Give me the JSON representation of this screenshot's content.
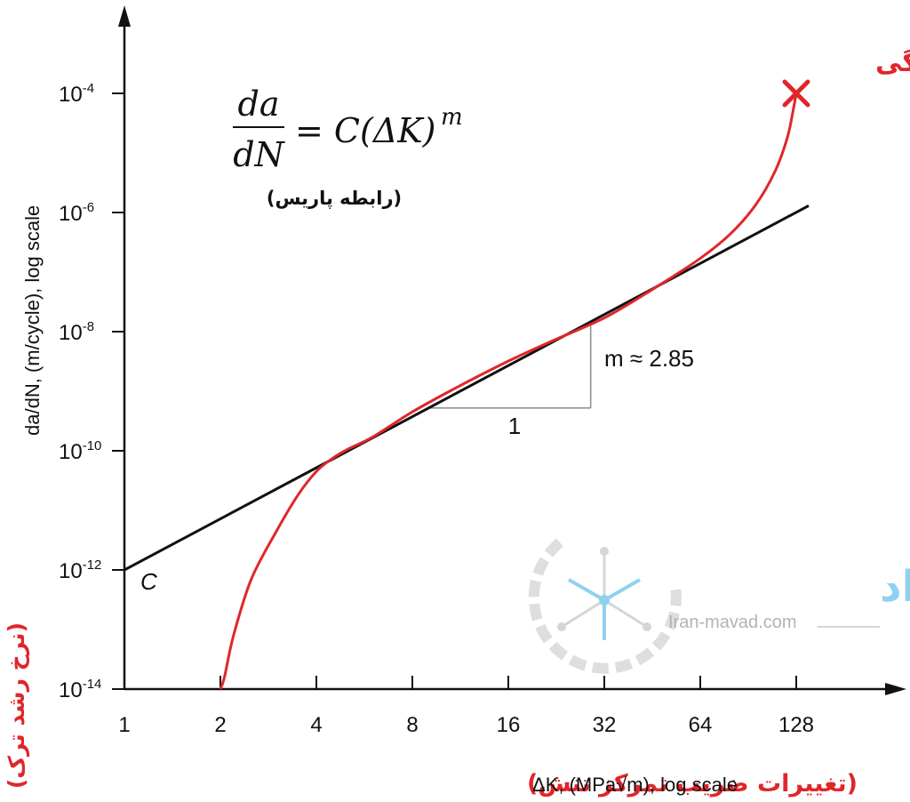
{
  "chart_data": {
    "type": "line",
    "x_scale": "log2",
    "y_scale": "log10",
    "xlim": [
      1,
      256
    ],
    "ylim": [
      1e-14,
      0.001
    ],
    "x_ticks": [
      1,
      2,
      4,
      8,
      16,
      32,
      64,
      128
    ],
    "x_tick_labels": [
      "1",
      "2",
      "4",
      "8",
      "16",
      "32",
      "64",
      "128"
    ],
    "y_ticks": [
      1e-14,
      1e-12,
      1e-10,
      1e-08,
      1e-06,
      0.0001
    ],
    "y_tick_labels": [
      {
        "base": "10",
        "exp": "-14"
      },
      {
        "base": "10",
        "exp": "-12"
      },
      {
        "base": "10",
        "exp": "-10"
      },
      {
        "base": "10",
        "exp": "-8"
      },
      {
        "base": "10",
        "exp": "-6"
      },
      {
        "base": "10",
        "exp": "-4"
      }
    ],
    "xlabel_fa": "(تغییرات ضریب تمرکز تنش)",
    "xlabel_en": "ΔK, (MPa√m), log scale",
    "ylabel_en": "da/dN, (m/cycle), log scale",
    "ylabel_fa": "(نرخ رشد ترک)",
    "grid": false,
    "series": [
      {
        "type": "crack-growth-curve",
        "color": "#e0262b",
        "x": [
          2.0,
          2.06,
          2.2,
          2.5,
          3.0,
          3.5,
          4.0,
          4.5,
          5.0,
          6.0,
          8.0,
          11.0,
          16.0,
          22.0,
          32.0,
          45.0,
          64.0,
          80.0,
          96.0,
          110.0,
          120.0,
          125.0,
          128.0
        ],
        "y": [
          1e-14,
          1.6e-14,
          8e-14,
          7e-13,
          4.5e-12,
          1.8e-11,
          4.5e-11,
          7.5e-11,
          1.05e-10,
          1.7e-10,
          4.5e-10,
          1.15e-09,
          3.2e-09,
          7e-09,
          1.7e-08,
          5e-08,
          1.7e-07,
          4.5e-07,
          1.4e-06,
          5e-06,
          1.8e-05,
          5e-05,
          0.0001
        ]
      },
      {
        "type": "paris-law-line",
        "color": "#111111",
        "x": [
          1,
          140
        ],
        "y": [
          1e-12,
          1.3e-06
        ]
      }
    ],
    "annotations": {
      "fracture_label": "شکست خستگی",
      "fracture_point": {
        "x": 128,
        "y": 0.0001
      },
      "formula": {
        "numerator": "da",
        "denominator": "dN",
        "rhs": "= C(ΔK)",
        "exponent": "m"
      },
      "formula_caption": "(رابطه پاریس)",
      "slope_label": "m ≈ 2.85",
      "run_label": "1",
      "slope_triangle": {
        "x1": 9.0,
        "x2": 29.0
      },
      "intercept_label": "C"
    }
  },
  "watermark": {
    "text_fa": "ایـران مواد",
    "text_en": "Iran-mavad.com"
  }
}
